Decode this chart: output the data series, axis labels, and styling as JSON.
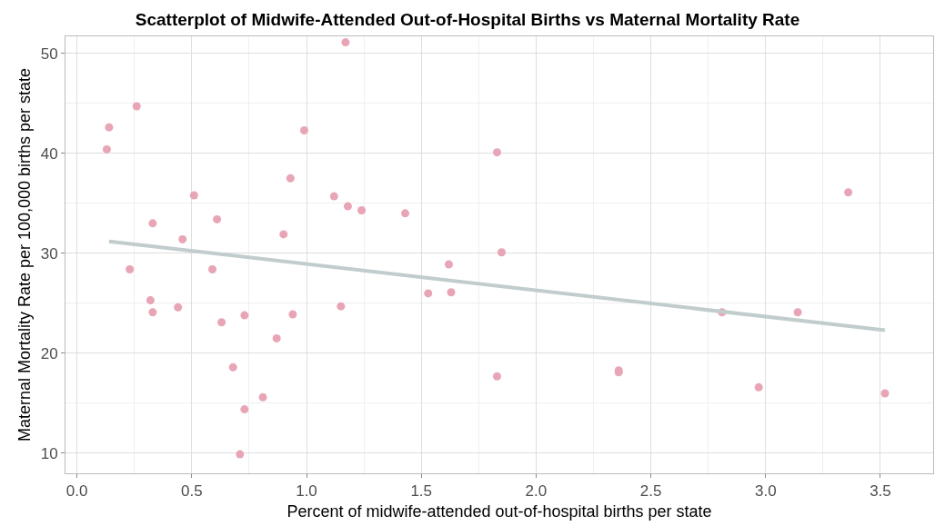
{
  "chart_data": {
    "type": "scatter",
    "title": "Scatterplot of Midwife-Attended Out-of-Hospital Births vs Maternal Mortality Rate",
    "xlabel": "Percent of midwife-attended out-of-hospital births per state",
    "ylabel": "Maternal Mortality Rate per 100,000 births per state",
    "series": [
      {
        "color": "#e8a5b5",
        "marker": "circle",
        "x": [
          0.13,
          0.14,
          0.26,
          0.23,
          0.32,
          0.33,
          0.33,
          0.44,
          0.46,
          0.51,
          0.59,
          0.61,
          0.63,
          0.68,
          0.71,
          0.73,
          0.73,
          0.81,
          0.87,
          0.9,
          0.93,
          0.94,
          0.99,
          1.12,
          1.15,
          1.17,
          1.18,
          1.24,
          1.43,
          1.53,
          1.62,
          1.63,
          1.83,
          1.83,
          1.85,
          2.36,
          2.36,
          2.81,
          2.97,
          3.14,
          3.36,
          3.52
        ],
        "values": [
          40.4,
          42.6,
          44.7,
          28.4,
          25.3,
          33.0,
          24.1,
          24.6,
          31.4,
          35.8,
          28.4,
          33.4,
          23.1,
          18.6,
          9.9,
          23.8,
          14.4,
          15.6,
          21.5,
          31.9,
          37.5,
          23.9,
          42.3,
          35.7,
          24.7,
          51.1,
          34.7,
          34.3,
          34.0,
          26.0,
          28.9,
          26.1,
          40.1,
          17.7,
          30.1,
          18.3,
          18.1,
          24.1,
          16.6,
          24.1,
          36.1,
          16.0
        ]
      },
      {
        "type": "line",
        "color": "#c1cccc",
        "x": [
          0.14,
          3.52
        ],
        "values": [
          31.2,
          22.3
        ]
      }
    ],
    "xlim": [
      -0.05,
      3.73
    ],
    "ylim": [
      8.0,
      51.7
    ],
    "xticks": [
      {
        "value": 0,
        "label": "0.0"
      },
      0.5,
      {
        "value": 1,
        "label": "1.0"
      },
      1.5,
      {
        "value": 2,
        "label": "2.0"
      },
      2.5,
      {
        "value": 3,
        "label": "3.0"
      },
      3.5
    ],
    "yticks": [
      10,
      20,
      30,
      40,
      50
    ],
    "grid": true
  }
}
